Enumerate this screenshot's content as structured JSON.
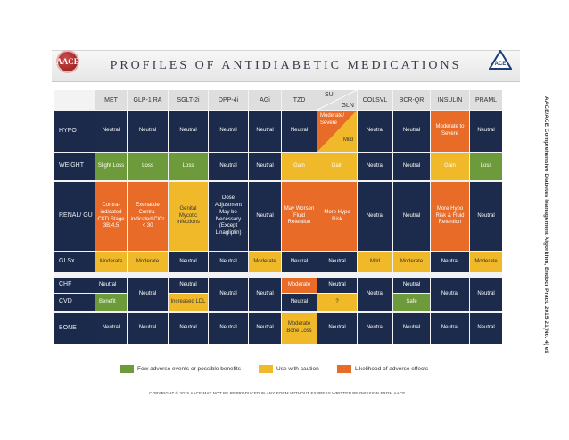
{
  "title": "PROFILES OF ANTIDIABETIC MEDICATIONS",
  "logo_left_text": "AACE",
  "logo_right_text": "ACE",
  "columns": [
    "MET",
    "GLP-1 RA",
    "SGLT-2i",
    "DPP-4i",
    "AGi",
    "TZD",
    "SU",
    "GLN",
    "COLSVL",
    "BCR-QR",
    "INSULIN",
    "PRAML"
  ],
  "rows": [
    "HYPO",
    "WEIGHT",
    "RENAL/ GU",
    "GI Sx",
    "CHF",
    "CVD",
    "BONE"
  ],
  "cells": {
    "hypo": [
      "Neutral",
      "Neutral",
      "Neutral",
      "Neutral",
      "Neutral",
      "Neutral",
      "Moderate/ Severe",
      "Mild",
      "Neutral",
      "Neutral",
      "Moderate to Severe",
      "Neutral"
    ],
    "weight": [
      "Slight Loss",
      "Loss",
      "Loss",
      "Neutral",
      "Neutral",
      "Gain",
      "Gain",
      "Neutral",
      "Neutral",
      "Gain",
      "Loss"
    ],
    "renal": [
      "Contra-indicated CKD Stage 3B,4,5",
      "Exenatide Contra-indicated ClCr < 30",
      "Genital Mycotic Infections",
      "Dose Adjustment May be Necessary (Except Linagliptin)",
      "Neutral",
      "May Worsen Fluid Retention",
      "More Hypo Risk",
      "Neutral",
      "Neutral",
      "More Hypo Risk & Fluid Retention",
      "Neutral"
    ],
    "gi": [
      "Moderate",
      "Moderate",
      "Neutral",
      "Neutral",
      "Moderate",
      "Neutral",
      "Neutral",
      "Mild",
      "Moderate",
      "Neutral",
      "Moderate"
    ],
    "chf_met": "Neutral",
    "cvd_met": "Benefit",
    "chf_cvd_glp": "Neutral",
    "chf_sglt": "Neutral",
    "cvd_sglt": "Increased LDL",
    "chf_cvd_dpp": "Neutral",
    "chf_cvd_agi": "Neutral",
    "chf_tzd": "Moderate",
    "cvd_tzd": "Neutral",
    "chf_su": "Neutral",
    "cvd_su": "?",
    "chf_cvd_colsvl": "Neutral",
    "chf_bcr": "Neutral",
    "cvd_bcr": "Safe",
    "chf_cvd_insulin": "Neutral",
    "chf_cvd_praml": "Neutral",
    "bone": [
      "Neutral",
      "Neutral",
      "Neutral",
      "Neutral",
      "Neutral",
      "Moderate Bone Loss",
      "Neutral",
      "Neutral",
      "Neutral",
      "Neutral",
      "Neutral"
    ]
  },
  "legend": [
    "Few adverse events or possible benefits",
    "Use with caution",
    "Likelihood of adverse effects"
  ],
  "colors": {
    "navy": "#1c2b4b",
    "green": "#6d9a3a",
    "yellow": "#f0b92a",
    "orange": "#e86b28"
  },
  "copyright": "COPYRIGHT © 2015 AACE  MAY NOT BE REPRODUCED IN ANY FORM WITHOUT EXPRESS WRITTEN PERMISSION FROM AACE.",
  "citation": "AACE/ACE Comprehensive Diabetes Management Algorithm, Endocr Pract. 2015;21(No. 4)  e9"
}
